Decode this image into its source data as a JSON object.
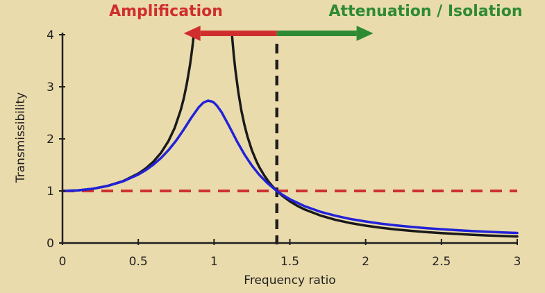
{
  "page": {
    "background": "#eadbac"
  },
  "chart_data": {
    "type": "line",
    "title": "",
    "xlabel": "Frequency ratio",
    "ylabel": "Transmissibility",
    "xlim": [
      0,
      3
    ],
    "ylim": [
      0,
      4
    ],
    "grid": false,
    "legend": "none",
    "axis_color": "#1f1f1f",
    "x_ticks": [
      0,
      0.5,
      1,
      1.5,
      2,
      2.5,
      3
    ],
    "x_tick_labels": [
      "0",
      "0.5",
      "1",
      "1.5",
      "2",
      "2.5",
      "3"
    ],
    "y_ticks": [
      0,
      1,
      2,
      3,
      4
    ],
    "y_tick_labels": [
      "0",
      "1",
      "2",
      "3",
      "4"
    ],
    "series": [
      {
        "name": "undamped-transmissibility",
        "color": "#1a1a1a",
        "width": 3.5,
        "branches": [
          [
            [
              0,
              1
            ],
            [
              0.1,
              1.01
            ],
            [
              0.2,
              1.042
            ],
            [
              0.3,
              1.099
            ],
            [
              0.4,
              1.19
            ],
            [
              0.5,
              1.333
            ],
            [
              0.55,
              1.435
            ],
            [
              0.6,
              1.563
            ],
            [
              0.65,
              1.732
            ],
            [
              0.7,
              1.961
            ],
            [
              0.74,
              2.21
            ],
            [
              0.78,
              2.554
            ],
            [
              0.8,
              2.778
            ],
            [
              0.82,
              3.053
            ],
            [
              0.84,
              3.397
            ],
            [
              0.85,
              3.604
            ],
            [
              0.86,
              3.84
            ],
            [
              0.866,
              4
            ]
          ],
          [
            [
              1.118,
              4
            ],
            [
              1.13,
              3.611
            ],
            [
              1.14,
              3.338
            ],
            [
              1.16,
              2.894
            ],
            [
              1.18,
              2.548
            ],
            [
              1.2,
              2.273
            ],
            [
              1.22,
              2.047
            ],
            [
              1.25,
              1.778
            ],
            [
              1.28,
              1.566
            ],
            [
              1.3,
              1.449
            ],
            [
              1.33,
              1.301
            ],
            [
              1.36,
              1.177
            ],
            [
              1.39,
              1.073
            ],
            [
              1.414,
              1
            ],
            [
              1.45,
              0.907
            ],
            [
              1.5,
              0.8
            ],
            [
              1.55,
              0.713
            ],
            [
              1.6,
              0.641
            ],
            [
              1.7,
              0.529
            ],
            [
              1.8,
              0.446
            ],
            [
              1.9,
              0.383
            ],
            [
              2,
              0.333
            ],
            [
              2.1,
              0.293
            ],
            [
              2.2,
              0.26
            ],
            [
              2.3,
              0.233
            ],
            [
              2.4,
              0.21
            ],
            [
              2.5,
              0.19
            ],
            [
              2.6,
              0.174
            ],
            [
              2.7,
              0.159
            ],
            [
              2.8,
              0.146
            ],
            [
              2.9,
              0.135
            ],
            [
              3,
              0.125
            ]
          ]
        ]
      },
      {
        "name": "damped-transmissibility",
        "color": "#2222d8",
        "width": 3.5,
        "branches": [
          [
            [
              0,
              1
            ],
            [
              0.1,
              1.01
            ],
            [
              0.2,
              1.041
            ],
            [
              0.3,
              1.097
            ],
            [
              0.4,
              1.184
            ],
            [
              0.5,
              1.314
            ],
            [
              0.55,
              1.4
            ],
            [
              0.6,
              1.505
            ],
            [
              0.65,
              1.632
            ],
            [
              0.7,
              1.785
            ],
            [
              0.75,
              1.968
            ],
            [
              0.8,
              2.18
            ],
            [
              0.85,
              2.407
            ],
            [
              0.9,
              2.611
            ],
            [
              0.93,
              2.696
            ],
            [
              0.96,
              2.733
            ],
            [
              0.99,
              2.713
            ],
            [
              1,
              2.693
            ],
            [
              1.02,
              2.634
            ],
            [
              1.05,
              2.509
            ],
            [
              1.1,
              2.241
            ],
            [
              1.15,
              1.959
            ],
            [
              1.2,
              1.703
            ],
            [
              1.25,
              1.486
            ],
            [
              1.3,
              1.304
            ],
            [
              1.35,
              1.155
            ],
            [
              1.414,
              1
            ],
            [
              1.45,
              0.928
            ],
            [
              1.5,
              0.841
            ],
            [
              1.6,
              0.704
            ],
            [
              1.7,
              0.602
            ],
            [
              1.8,
              0.524
            ],
            [
              1.9,
              0.462
            ],
            [
              2,
              0.413
            ],
            [
              2.1,
              0.372
            ],
            [
              2.2,
              0.338
            ],
            [
              2.3,
              0.31
            ],
            [
              2.4,
              0.286
            ],
            [
              2.5,
              0.265
            ],
            [
              2.6,
              0.247
            ],
            [
              2.7,
              0.231
            ],
            [
              2.8,
              0.217
            ],
            [
              2.9,
              0.204
            ],
            [
              3,
              0.193
            ]
          ]
        ]
      }
    ],
    "reference_lines": [
      {
        "name": "unity-transmissibility-line",
        "orientation": "horizontal",
        "value": 1,
        "color": "#cc3130",
        "width": 4,
        "dash": "17 11"
      },
      {
        "name": "crossover-sqrt2-line",
        "orientation": "vertical",
        "value": 1.4142,
        "color": "#1e1e1e",
        "width": 4.5,
        "dash": "14 9"
      }
    ],
    "annotations": {
      "amplification_region": {
        "label": "Amplification",
        "color": "#d02e2e",
        "arrow": "left",
        "x_range": [
          0.8,
          1.4142
        ]
      },
      "isolation_region": {
        "label": "Attenuation / Isolation",
        "color": "#2e8b33",
        "arrow": "right",
        "x_range": [
          1.4142,
          2.05
        ]
      }
    }
  }
}
